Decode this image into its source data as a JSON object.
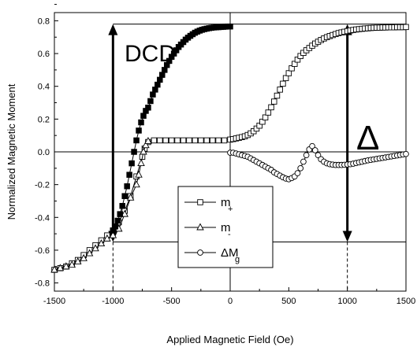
{
  "chart_data": {
    "type": "scatter",
    "xlabel": "Applied Magnetic Field (Oe)",
    "ylabel": "Normalized Magnetic Moment",
    "xlim": [
      -1500,
      1500
    ],
    "ylim": [
      -0.85,
      0.85
    ],
    "xticks": [
      "-1500",
      "-1000",
      "-500",
      "0",
      "500",
      "1000",
      "1500"
    ],
    "yticks": [
      "-0.8",
      "-0.6",
      "-0.4",
      "-0.2",
      "0.0",
      "0.2",
      "0.4",
      "0.6",
      "0.8"
    ],
    "grid": false,
    "legend_position": "lower-center",
    "annotations": {
      "dcd_label": "DCD",
      "delta_label": "Δ"
    },
    "series": [
      {
        "name": "m+",
        "name_main": "m",
        "name_sub": "+",
        "marker": "square",
        "x": [
          -1500,
          -1450,
          -1400,
          -1350,
          -1300,
          -1250,
          -1200,
          -1150,
          -1100,
          -1050,
          -1000,
          -950,
          -900,
          -850,
          -800,
          -750,
          -730,
          -700,
          -650,
          -600,
          -550,
          -500,
          -450,
          -400,
          -350,
          -300,
          -250,
          -200,
          -150,
          -100,
          -50,
          0,
          25,
          50,
          75,
          100,
          125,
          150,
          175,
          200,
          225,
          250,
          275,
          300,
          325,
          350,
          375,
          400,
          425,
          450,
          475,
          500,
          525,
          550,
          575,
          600,
          625,
          650,
          675,
          700,
          725,
          750,
          775,
          800,
          825,
          850,
          875,
          900,
          925,
          950,
          975,
          1000,
          1025,
          1050,
          1075,
          1100,
          1125,
          1150,
          1175,
          1200,
          1225,
          1250,
          1275,
          1300,
          1325,
          1350,
          1375,
          1400,
          1425,
          1450,
          1475,
          1500
        ],
        "y": [
          -0.72,
          -0.71,
          -0.7,
          -0.68,
          -0.66,
          -0.63,
          -0.6,
          -0.57,
          -0.54,
          -0.51,
          -0.48,
          -0.43,
          -0.36,
          -0.27,
          -0.15,
          -0.03,
          0.02,
          0.06,
          0.07,
          0.07,
          0.07,
          0.07,
          0.07,
          0.07,
          0.07,
          0.07,
          0.07,
          0.07,
          0.07,
          0.07,
          0.07,
          0.075,
          0.078,
          0.082,
          0.086,
          0.09,
          0.095,
          0.103,
          0.113,
          0.126,
          0.142,
          0.16,
          0.184,
          0.21,
          0.24,
          0.272,
          0.307,
          0.343,
          0.38,
          0.416,
          0.45,
          0.48,
          0.51,
          0.537,
          0.563,
          0.585,
          0.604,
          0.62,
          0.634,
          0.648,
          0.661,
          0.672,
          0.683,
          0.692,
          0.7,
          0.707,
          0.713,
          0.719,
          0.725,
          0.729,
          0.733,
          0.737,
          0.741,
          0.744,
          0.747,
          0.749,
          0.751,
          0.753,
          0.754,
          0.756,
          0.757,
          0.758,
          0.758,
          0.759,
          0.759,
          0.76,
          0.76,
          0.76,
          0.761,
          0.761,
          0.761,
          0.762
        ]
      },
      {
        "name": "m-",
        "name_main": "m",
        "name_sub": "-",
        "marker": "triangle",
        "x": [
          -1500,
          -1450,
          -1400,
          -1350,
          -1300,
          -1250,
          -1200,
          -1150,
          -1100,
          -1050,
          -1000,
          -950,
          -900,
          -850,
          -800,
          -780,
          -760,
          -740,
          -720,
          -700
        ],
        "y": [
          -0.72,
          -0.71,
          -0.7,
          -0.69,
          -0.67,
          -0.65,
          -0.62,
          -0.59,
          -0.56,
          -0.53,
          -0.51,
          -0.47,
          -0.38,
          -0.28,
          -0.2,
          -0.14,
          -0.07,
          0.0,
          0.04,
          0.065
        ]
      },
      {
        "name": "ΔMg",
        "name_main": "ΔM",
        "name_sub": "g",
        "marker": "circle",
        "x": [
          0,
          25,
          50,
          75,
          100,
          125,
          150,
          175,
          200,
          225,
          250,
          275,
          300,
          325,
          350,
          375,
          400,
          425,
          450,
          475,
          500,
          525,
          550,
          575,
          600,
          625,
          650,
          675,
          700,
          725,
          750,
          775,
          800,
          825,
          850,
          875,
          900,
          925,
          950,
          975,
          1000,
          1025,
          1050,
          1075,
          1100,
          1125,
          1150,
          1175,
          1200,
          1225,
          1250,
          1275,
          1300,
          1325,
          1350,
          1375,
          1400,
          1425,
          1450,
          1475,
          1500
        ],
        "y": [
          -0.005,
          -0.005,
          -0.01,
          -0.015,
          -0.02,
          -0.025,
          -0.03,
          -0.04,
          -0.05,
          -0.06,
          -0.07,
          -0.08,
          -0.09,
          -0.1,
          -0.11,
          -0.125,
          -0.135,
          -0.145,
          -0.155,
          -0.163,
          -0.167,
          -0.16,
          -0.15,
          -0.13,
          -0.1,
          -0.06,
          -0.02,
          0.015,
          0.035,
          0.01,
          -0.02,
          -0.045,
          -0.06,
          -0.07,
          -0.075,
          -0.078,
          -0.08,
          -0.08,
          -0.08,
          -0.079,
          -0.077,
          -0.075,
          -0.072,
          -0.068,
          -0.064,
          -0.06,
          -0.056,
          -0.052,
          -0.049,
          -0.046,
          -0.043,
          -0.04,
          -0.037,
          -0.034,
          -0.031,
          -0.028,
          -0.025,
          -0.022,
          -0.019,
          -0.016,
          -0.013
        ]
      },
      {
        "name": "",
        "marker": "filled-square",
        "x": [
          -1000,
          -980,
          -960,
          -940,
          -920,
          -900,
          -880,
          -860,
          -840,
          -820,
          -800,
          -780,
          -760,
          -740,
          -720,
          -700,
          -680,
          -660,
          -640,
          -620,
          -600,
          -580,
          -560,
          -540,
          -520,
          -500,
          -480,
          -460,
          -440,
          -420,
          -400,
          -380,
          -360,
          -340,
          -320,
          -300,
          -280,
          -260,
          -240,
          -220,
          -200,
          -180,
          -160,
          -140,
          -120,
          -100,
          -80,
          -60,
          -40,
          -20,
          0
        ],
        "y": [
          -0.48,
          -0.455,
          -0.42,
          -0.38,
          -0.33,
          -0.27,
          -0.21,
          -0.14,
          -0.07,
          0.0,
          0.07,
          0.13,
          0.18,
          0.22,
          0.25,
          0.27,
          0.31,
          0.35,
          0.38,
          0.41,
          0.44,
          0.47,
          0.5,
          0.53,
          0.555,
          0.58,
          0.6,
          0.62,
          0.64,
          0.655,
          0.67,
          0.685,
          0.697,
          0.708,
          0.718,
          0.727,
          0.734,
          0.74,
          0.745,
          0.749,
          0.752,
          0.755,
          0.757,
          0.759,
          0.76,
          0.761,
          0.762,
          0.763,
          0.764,
          0.765,
          0.765
        ]
      }
    ],
    "reference_lines": {
      "h_top": {
        "y": 0.78,
        "x_from": -1000,
        "x_to": 1500
      },
      "h_bottom": {
        "y": -0.55,
        "x_from": -1000,
        "x_to": 1500
      },
      "v_dashed_left": {
        "x": -1000,
        "y_from": -0.55,
        "y_to": -0.85
      },
      "v_dashed_right": {
        "x": 1000,
        "y_from": -0.55,
        "y_to": -0.85
      },
      "arrow_dcd": {
        "x": -1000,
        "y_from": -0.55,
        "y_to": 0.78
      },
      "arrow_delta": {
        "x": 1000,
        "y_from": -0.55,
        "y_to": 0.78
      }
    }
  }
}
